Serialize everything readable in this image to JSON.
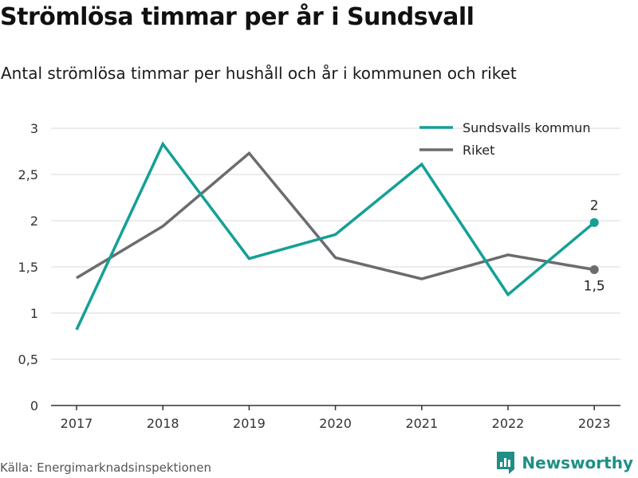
{
  "title": "Strömlösa timmar per år i Sundsvall",
  "subtitle": "Antal strömlösa timmar per hushåll och år i kommunen och riket",
  "source": "Källa: Energimarknadsinspektionen",
  "brand": {
    "name": "Newsworthy",
    "icon": "newsworthy-logo-icon"
  },
  "colors": {
    "sundsvall": "#13a096",
    "riket": "#6b6b70",
    "grid": "#d9d9d9",
    "axis": "#333333"
  },
  "chart_data": {
    "type": "line",
    "x": [
      "2017",
      "2018",
      "2019",
      "2020",
      "2021",
      "2022",
      "2023"
    ],
    "ylim": [
      0,
      3
    ],
    "yticks": [
      0,
      0.5,
      1,
      1.5,
      2,
      2.5,
      3
    ],
    "ytick_labels": [
      "0",
      "0,5",
      "1",
      "1,5",
      "2",
      "2,5",
      "3"
    ],
    "grid": true,
    "legend": "top-right",
    "series": [
      {
        "name": "Sundsvalls kommun",
        "values": [
          0.82,
          2.83,
          1.59,
          1.85,
          2.61,
          1.2,
          1.98
        ],
        "end_label": "2"
      },
      {
        "name": "Riket",
        "values": [
          1.38,
          1.94,
          2.73,
          1.6,
          1.37,
          1.63,
          1.47
        ],
        "end_label": "1,5"
      }
    ]
  }
}
